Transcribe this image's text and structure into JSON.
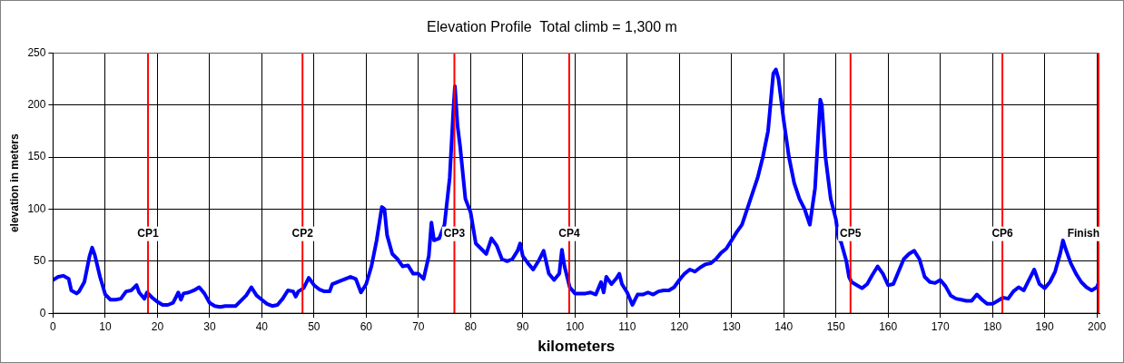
{
  "chart_data": {
    "type": "line",
    "title": "Elevation Profile  Total climb = 1,300 m",
    "xlabel": "kilometers",
    "ylabel": "elevation in meters",
    "x": [
      0,
      1,
      2,
      3,
      3.5,
      4.5,
      5,
      6,
      7,
      7.5,
      8,
      9,
      10,
      11,
      12,
      13,
      14,
      15,
      16,
      16.5,
      17,
      17.5,
      18,
      19,
      20,
      21,
      22,
      23,
      24,
      24.5,
      25,
      26,
      27,
      28,
      29,
      30,
      31,
      32,
      33,
      34,
      35,
      36,
      37,
      38,
      39,
      40,
      41,
      42,
      43,
      44,
      45,
      46,
      46.5,
      47,
      48,
      49,
      50,
      51,
      52,
      53,
      53.5,
      55,
      56,
      57,
      58,
      59,
      60,
      61,
      62,
      63,
      63.5,
      64,
      65,
      66,
      67,
      68,
      69,
      70,
      71,
      72,
      72.5,
      73,
      74,
      75,
      76,
      76.7,
      77,
      77.5,
      78,
      79,
      80,
      81,
      82,
      83,
      84,
      85,
      86,
      87,
      88,
      89,
      89.5,
      90,
      91,
      92,
      93,
      94,
      95,
      96,
      97,
      97.5,
      98,
      99,
      100,
      101,
      102,
      103,
      104,
      105,
      105.5,
      106,
      107,
      108,
      108.5,
      109,
      110,
      111,
      112,
      113,
      114,
      115,
      116,
      117,
      118,
      119,
      120,
      121,
      122,
      123,
      124,
      125,
      126,
      127,
      128,
      129,
      130,
      131,
      132,
      133,
      134,
      135,
      136,
      137,
      138,
      138.5,
      139,
      140,
      141,
      142,
      143,
      144,
      145,
      146,
      147,
      147.3,
      148,
      149,
      150,
      150.5,
      151,
      152,
      152.5,
      153,
      154,
      155,
      156,
      157,
      158,
      159,
      160,
      161,
      162,
      163,
      164,
      165,
      166,
      167,
      168,
      169,
      170,
      171,
      172,
      173,
      174,
      175,
      176,
      177,
      178,
      179,
      180,
      181,
      182,
      183,
      184,
      185,
      186,
      187,
      188,
      189,
      190,
      191,
      192,
      193,
      193.5,
      194,
      195,
      196,
      197,
      198,
      199,
      200,
      200.4
    ],
    "series": [
      {
        "color": "#0000ff",
        "values": [
          32,
          35,
          36,
          33,
          22,
          19,
          21,
          30,
          55,
          63,
          56,
          35,
          18,
          13,
          13,
          14,
          21,
          22,
          27,
          20,
          17,
          14,
          20,
          15,
          11,
          8,
          8,
          10,
          20,
          13,
          19,
          20,
          22,
          25,
          19,
          10,
          7,
          6,
          7,
          7,
          7,
          12,
          17,
          25,
          17,
          13,
          9,
          7,
          8,
          14,
          22,
          21,
          16,
          21,
          24,
          34,
          27,
          23,
          21,
          21,
          28,
          31,
          33,
          35,
          33,
          20,
          28,
          45,
          70,
          102,
          100,
          75,
          57,
          52,
          45,
          46,
          38,
          38,
          33,
          55,
          87,
          70,
          72,
          85,
          130,
          195,
          218,
          180,
          160,
          110,
          97,
          67,
          62,
          57,
          72,
          65,
          52,
          50,
          52,
          60,
          67,
          55,
          48,
          42,
          50,
          60,
          38,
          32,
          38,
          61,
          45,
          25,
          19,
          19,
          19,
          20,
          18,
          30,
          20,
          35,
          28,
          34,
          38,
          28,
          20,
          8,
          18,
          18,
          20,
          18,
          21,
          22,
          22,
          25,
          32,
          38,
          42,
          40,
          44,
          47,
          48,
          52,
          58,
          62,
          70,
          78,
          85,
          100,
          115,
          130,
          150,
          175,
          230,
          234,
          225,
          185,
          150,
          125,
          110,
          100,
          85,
          120,
          205,
          200,
          150,
          110,
          90,
          72,
          68,
          50,
          35,
          30,
          27,
          24,
          28,
          37,
          45,
          38,
          27,
          28,
          40,
          52,
          57,
          60,
          52,
          35,
          30,
          29,
          32,
          26,
          17,
          14,
          13,
          12,
          12,
          18,
          13,
          9,
          9,
          12,
          15,
          14,
          21,
          25,
          22,
          32,
          42,
          28,
          24,
          30,
          40,
          58,
          70,
          62,
          48,
          38,
          30,
          25,
          22,
          25,
          30
        ]
      }
    ],
    "xlim": [
      0,
      200.5
    ],
    "xticks": [
      0,
      10,
      20,
      30,
      40,
      50,
      60,
      70,
      80,
      90,
      100,
      110,
      120,
      130,
      140,
      150,
      160,
      170,
      180,
      190,
      200
    ],
    "ylim": [
      0,
      250
    ],
    "yticks": [
      0,
      50,
      100,
      150,
      200,
      250
    ],
    "grid": true,
    "legend": false,
    "marker": "none",
    "line_style": "solid",
    "ref_lines": [
      {
        "axis": "x",
        "value": 18.2,
        "label": "CP1",
        "color": "#ff0000"
      },
      {
        "axis": "x",
        "value": 47.8,
        "label": "CP2",
        "color": "#ff0000"
      },
      {
        "axis": "x",
        "value": 76.9,
        "label": "CP3",
        "color": "#ff0000"
      },
      {
        "axis": "x",
        "value": 98.9,
        "label": "CP4",
        "color": "#ff0000"
      },
      {
        "axis": "x",
        "value": 152.8,
        "label": "CP5",
        "color": "#ff0000"
      },
      {
        "axis": "x",
        "value": 181.9,
        "label": "CP6",
        "color": "#ff0000"
      },
      {
        "axis": "x",
        "value": 200.3,
        "label": "Finish",
        "color": "#ff0000"
      }
    ]
  }
}
